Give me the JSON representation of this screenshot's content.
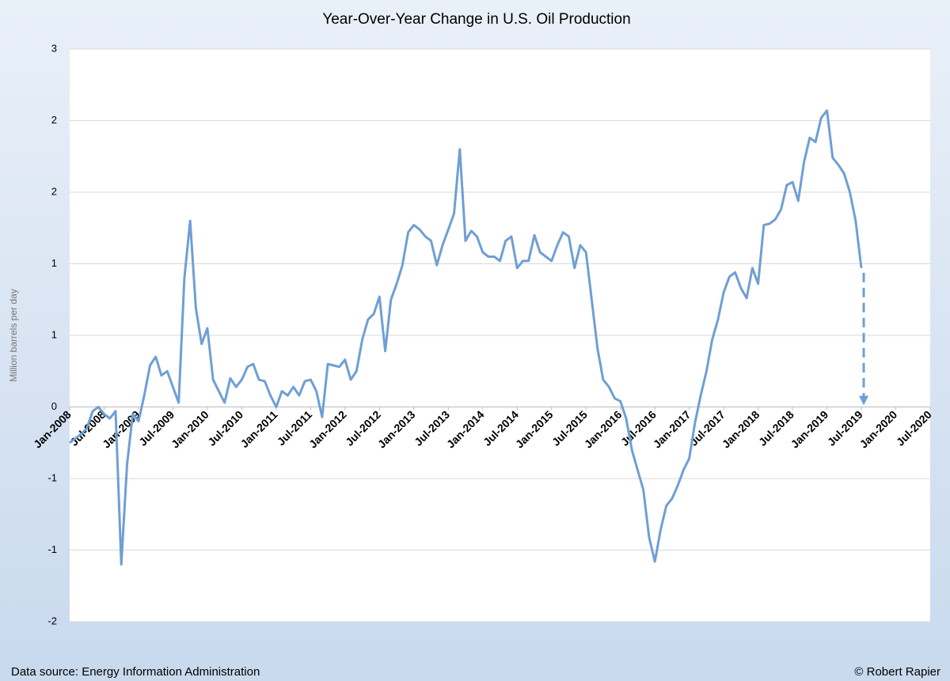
{
  "chart_data": {
    "type": "line",
    "title": "Year-Over-Year Change in U.S. Oil Production",
    "y_label": "Million barrels per day",
    "source": "Data source: Energy Information Administration",
    "credit": "© Robert Rapier",
    "x": [
      "2008-01",
      "2008-02",
      "2008-03",
      "2008-04",
      "2008-05",
      "2008-06",
      "2008-07",
      "2008-08",
      "2008-09",
      "2008-10",
      "2008-11",
      "2008-12",
      "2009-01",
      "2009-02",
      "2009-03",
      "2009-04",
      "2009-05",
      "2009-06",
      "2009-07",
      "2009-08",
      "2009-09",
      "2009-10",
      "2009-11",
      "2009-12",
      "2010-01",
      "2010-02",
      "2010-03",
      "2010-04",
      "2010-05",
      "2010-06",
      "2010-07",
      "2010-08",
      "2010-09",
      "2010-10",
      "2010-11",
      "2010-12",
      "2011-01",
      "2011-02",
      "2011-03",
      "2011-04",
      "2011-05",
      "2011-06",
      "2011-07",
      "2011-08",
      "2011-09",
      "2011-10",
      "2011-11",
      "2011-12",
      "2012-01",
      "2012-02",
      "2012-03",
      "2012-04",
      "2012-05",
      "2012-06",
      "2012-07",
      "2012-08",
      "2012-09",
      "2012-10",
      "2012-11",
      "2012-12",
      "2013-01",
      "2013-02",
      "2013-03",
      "2013-04",
      "2013-05",
      "2013-06",
      "2013-07",
      "2013-08",
      "2013-09",
      "2013-10",
      "2013-11",
      "2013-12",
      "2014-01",
      "2014-02",
      "2014-03",
      "2014-04",
      "2014-05",
      "2014-06",
      "2014-07",
      "2014-08",
      "2014-09",
      "2014-10",
      "2014-11",
      "2014-12",
      "2015-01",
      "2015-02",
      "2015-03",
      "2015-04",
      "2015-05",
      "2015-06",
      "2015-07",
      "2015-08",
      "2015-09",
      "2015-10",
      "2015-11",
      "2015-12",
      "2016-01",
      "2016-02",
      "2016-03",
      "2016-04",
      "2016-05",
      "2016-06",
      "2016-07",
      "2016-08",
      "2016-09",
      "2016-10",
      "2016-11",
      "2016-12",
      "2017-01",
      "2017-02",
      "2017-03",
      "2017-04",
      "2017-05",
      "2017-06",
      "2017-07",
      "2017-08",
      "2017-09",
      "2017-10",
      "2017-11",
      "2017-12",
      "2018-01",
      "2018-02",
      "2018-03",
      "2018-04",
      "2018-05",
      "2018-06",
      "2018-07",
      "2018-08",
      "2018-09",
      "2018-10",
      "2018-11",
      "2018-12",
      "2019-01",
      "2019-02",
      "2019-03",
      "2019-04",
      "2019-05",
      "2019-06",
      "2019-07"
    ],
    "series": [
      {
        "name": "Year-over-year change",
        "color": "#6f9fd4",
        "values": [
          -0.25,
          -0.22,
          -0.19,
          -0.15,
          -0.03,
          0,
          -0.05,
          -0.08,
          -0.03,
          -1.1,
          -0.4,
          -0.05,
          -0.1,
          0.08,
          0.29,
          0.35,
          0.22,
          0.25,
          0.14,
          0.03,
          0.9,
          1.3,
          0.69,
          0.44,
          0.55,
          0.19,
          0.11,
          0.03,
          0.2,
          0.14,
          0.19,
          0.28,
          0.3,
          0.19,
          0.18,
          0.08,
          0,
          0.11,
          0.08,
          0.14,
          0.08,
          0.18,
          0.19,
          0.11,
          -0.07,
          0.3,
          0.29,
          0.28,
          0.33,
          0.19,
          0.25,
          0.47,
          0.61,
          0.65,
          0.77,
          0.39,
          0.75,
          0.86,
          0.99,
          1.22,
          1.27,
          1.24,
          1.19,
          1.16,
          0.99,
          1.13,
          1.24,
          1.35,
          1.8,
          1.16,
          1.23,
          1.19,
          1.08,
          1.05,
          1.05,
          1.02,
          1.16,
          1.19,
          0.97,
          1.02,
          1.02,
          1.2,
          1.08,
          1.05,
          1.02,
          1.13,
          1.22,
          1.19,
          0.97,
          1.13,
          1.08,
          0.75,
          0.41,
          0.19,
          0.14,
          0.06,
          0.04,
          -0.08,
          -0.3,
          -0.44,
          -0.58,
          -0.91,
          -1.08,
          -0.86,
          -0.69,
          -0.64,
          -0.55,
          -0.44,
          -0.36,
          -0.11,
          0.08,
          0.25,
          0.47,
          0.61,
          0.8,
          0.91,
          0.94,
          0.83,
          0.76,
          0.97,
          0.86,
          1.27,
          1.28,
          1.31,
          1.38,
          1.55,
          1.57,
          1.44,
          1.71,
          1.88,
          1.85,
          2.02,
          2.07,
          1.74,
          1.69,
          1.63,
          1.5,
          1.3,
          0.97
        ]
      }
    ],
    "xlim": [
      "2008-01",
      "2020-07"
    ],
    "xticks": [
      {
        "value": "2008-01",
        "label": "Jan-2008"
      },
      {
        "value": "2008-07",
        "label": "Jul-2008"
      },
      {
        "value": "2009-01",
        "label": "Jan-2009"
      },
      {
        "value": "2009-07",
        "label": "Jul-2009"
      },
      {
        "value": "2010-01",
        "label": "Jan-2010"
      },
      {
        "value": "2010-07",
        "label": "Jul-2010"
      },
      {
        "value": "2011-01",
        "label": "Jan-2011"
      },
      {
        "value": "2011-07",
        "label": "Jul-2011"
      },
      {
        "value": "2012-01",
        "label": "Jan-2012"
      },
      {
        "value": "2012-07",
        "label": "Jul-2012"
      },
      {
        "value": "2013-01",
        "label": "Jan-2013"
      },
      {
        "value": "2013-07",
        "label": "Jul-2013"
      },
      {
        "value": "2014-01",
        "label": "Jan-2014"
      },
      {
        "value": "2014-07",
        "label": "Jul-2014"
      },
      {
        "value": "2015-01",
        "label": "Jan-2015"
      },
      {
        "value": "2015-07",
        "label": "Jul-2015"
      },
      {
        "value": "2016-01",
        "label": "Jan-2016"
      },
      {
        "value": "2016-07",
        "label": "Jul-2016"
      },
      {
        "value": "2017-01",
        "label": "Jan-2017"
      },
      {
        "value": "2017-07",
        "label": "Jul-2017"
      },
      {
        "value": "2018-01",
        "label": "Jan-2018"
      },
      {
        "value": "2018-07",
        "label": "Jul-2018"
      },
      {
        "value": "2019-01",
        "label": "Jan-2019"
      },
      {
        "value": "2019-07",
        "label": "Jul-2019"
      },
      {
        "value": "2020-01",
        "label": "Jan-2020"
      },
      {
        "value": "2020-07",
        "label": "Jul-2020"
      }
    ],
    "ylim": [
      -1.5,
      2.5
    ],
    "yticks": [
      {
        "value": -1.5,
        "label": "-2"
      },
      {
        "value": -1,
        "label": "-1"
      },
      {
        "value": -0.5,
        "label": "-1"
      },
      0,
      {
        "value": 0.5,
        "label": "1"
      },
      {
        "value": 1,
        "label": "1"
      },
      {
        "value": 1.5,
        "label": "2"
      },
      {
        "value": 2,
        "label": "2"
      },
      {
        "value": 2.5,
        "label": "3"
      }
    ],
    "grid": true
  }
}
